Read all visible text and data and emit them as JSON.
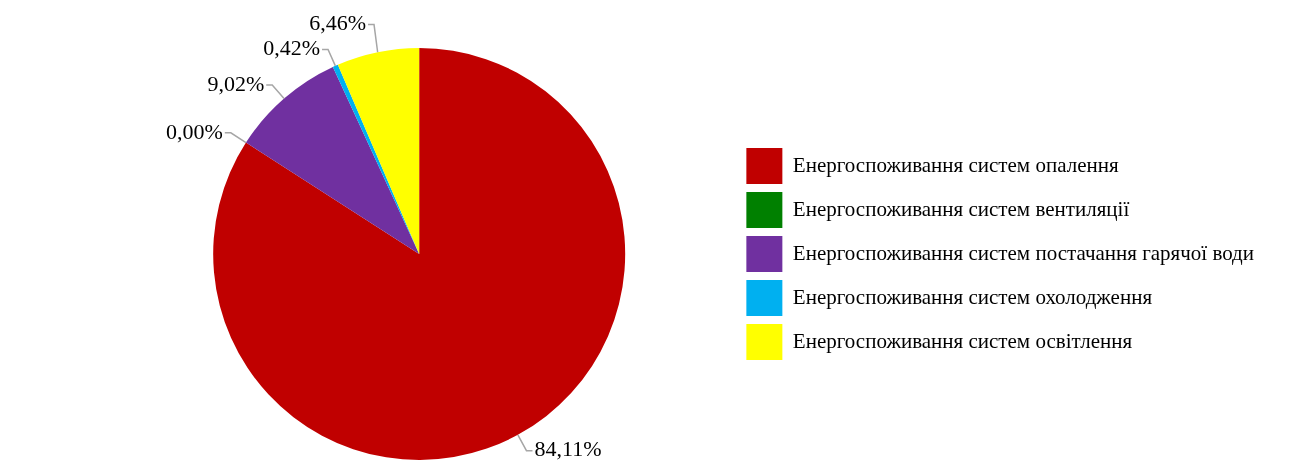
{
  "chart_data": {
    "type": "pie",
    "categories": [
      "Енергоспоживання систем опалення",
      "Енергоспоживання систем вентиляції",
      "Енергоспоживання систем постачання гарячої води",
      "Енергоспоживання систем охолодження",
      "Енергоспоживання систем освітлення"
    ],
    "values": [
      84.11,
      0.0,
      9.02,
      0.42,
      6.46
    ],
    "colors": [
      "#c00000",
      "#008000",
      "#7030a0",
      "#00b0f0",
      "#ffff00"
    ],
    "value_labels": [
      "84,11%",
      "0,00%",
      "9,02%",
      "0,42%",
      "6,46%"
    ],
    "legend": "right"
  }
}
